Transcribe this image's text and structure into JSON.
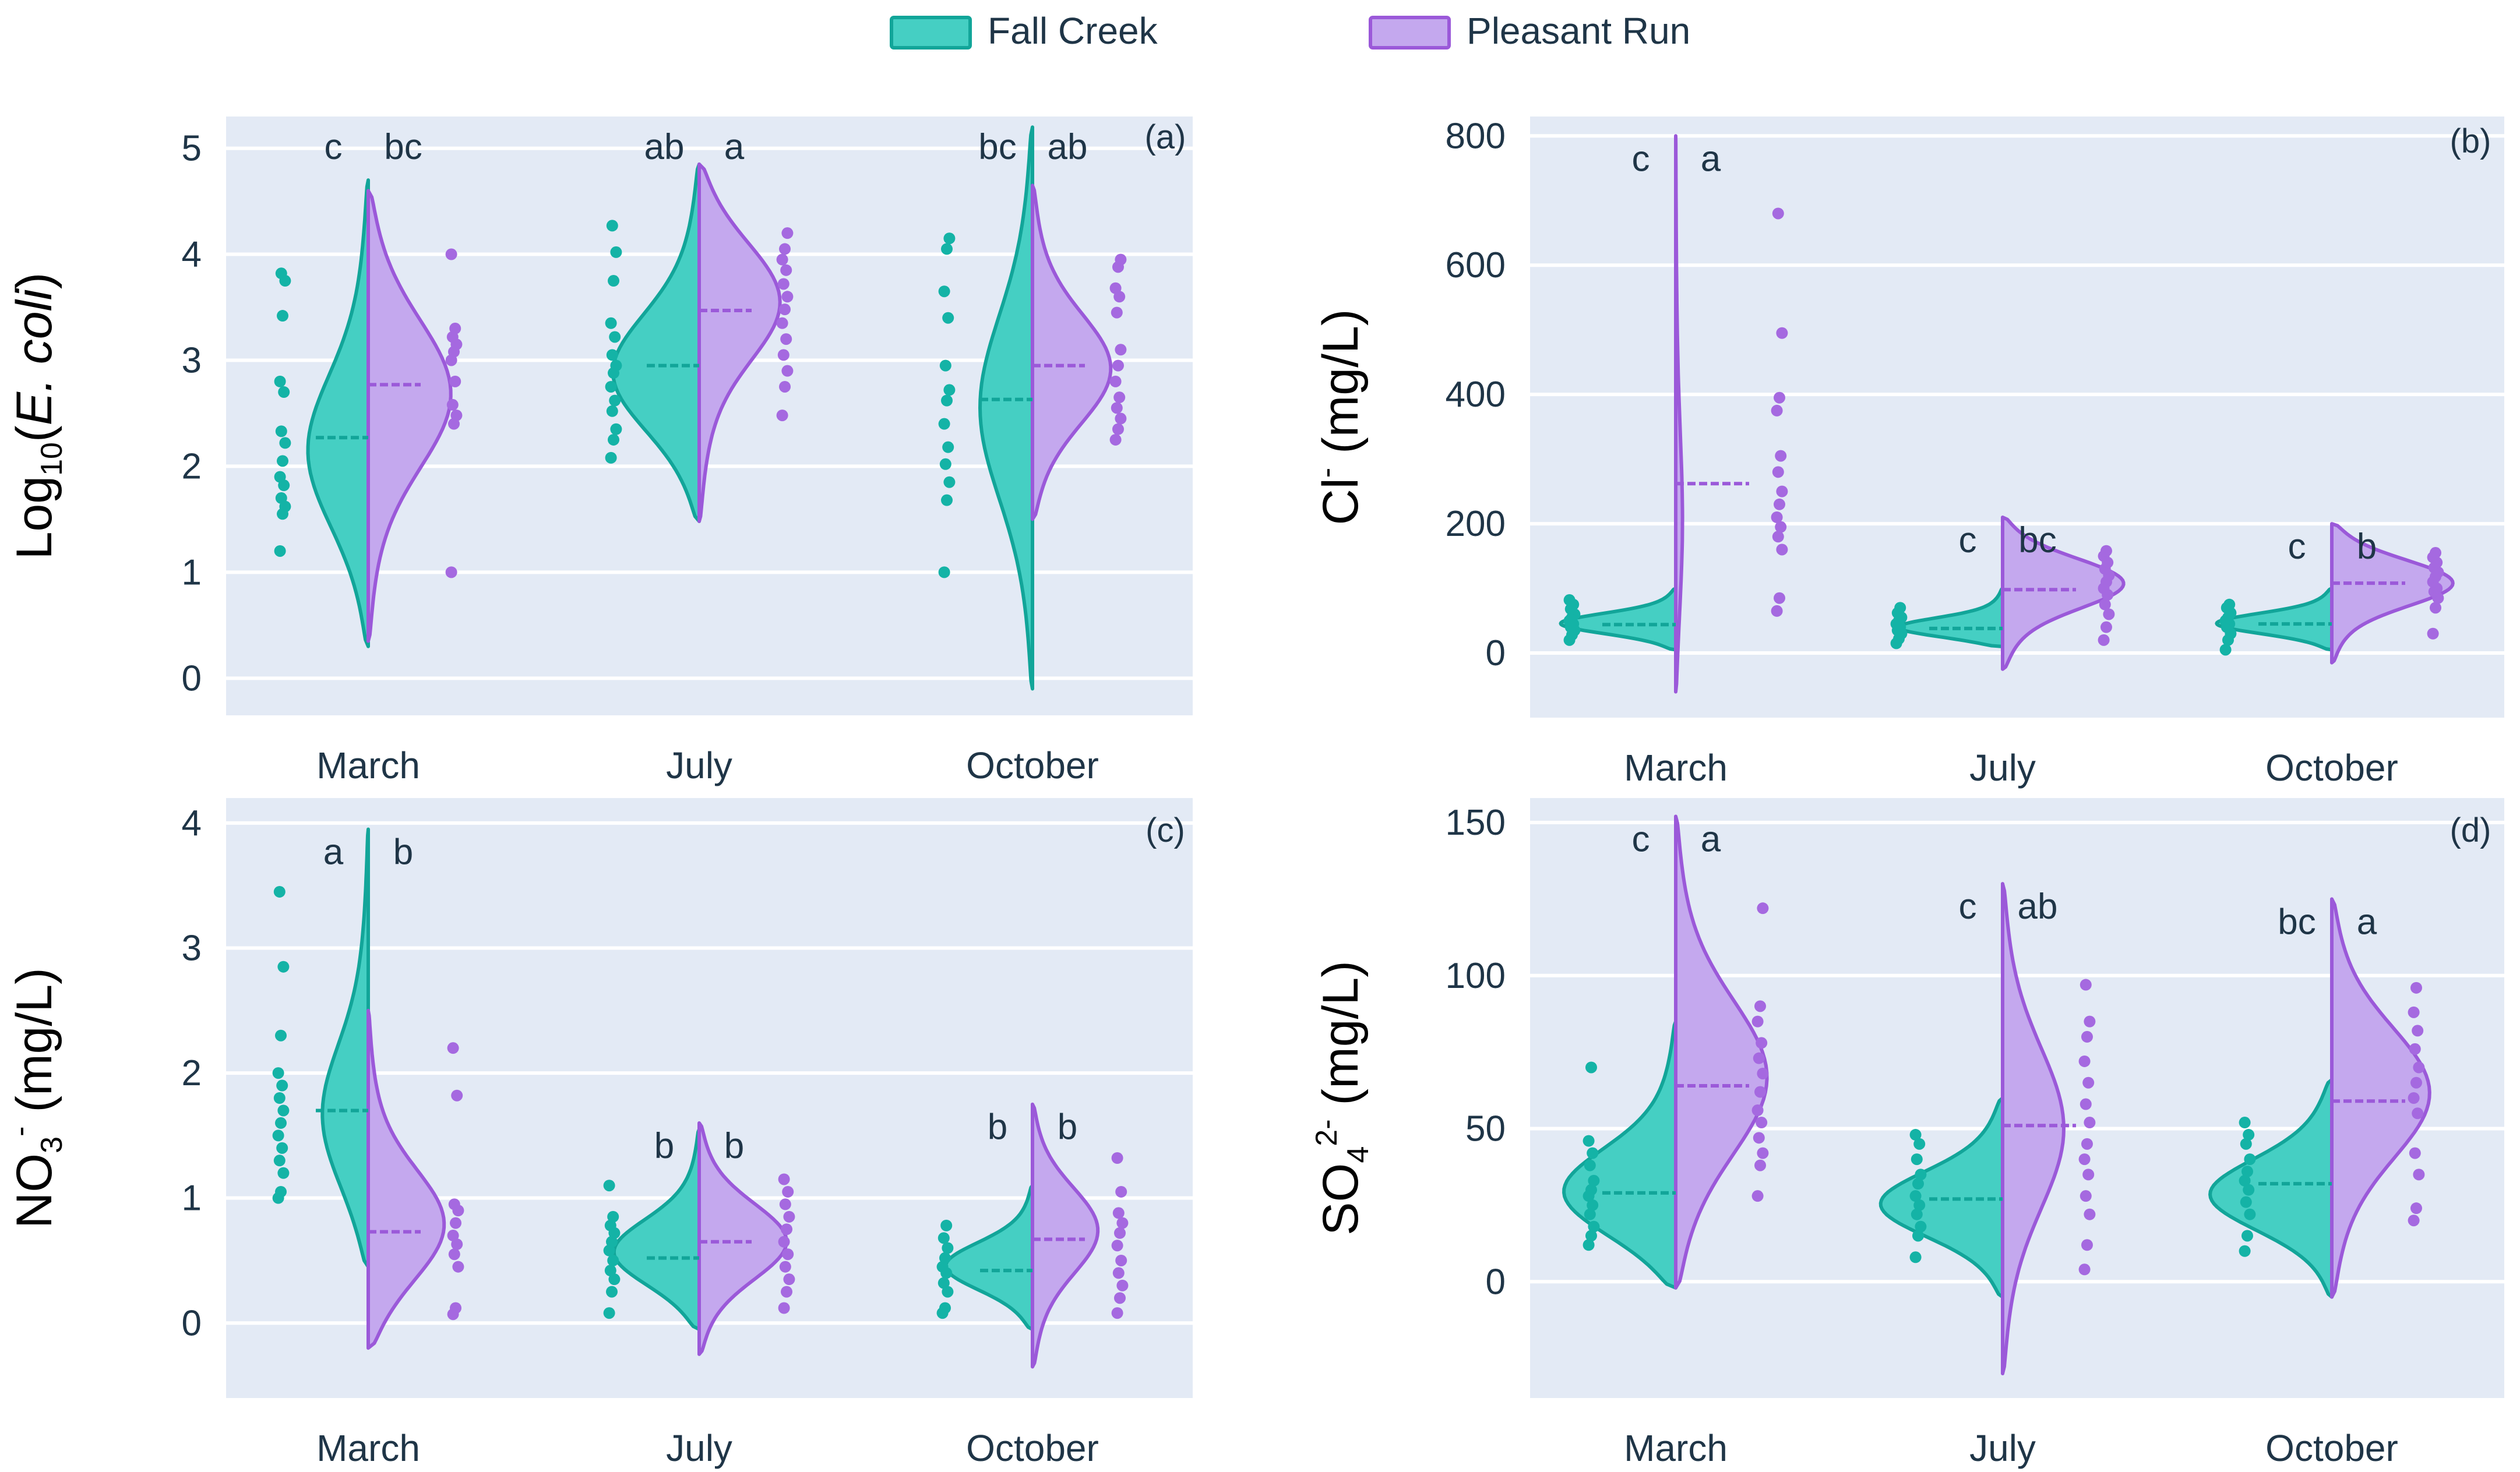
{
  "legend": {
    "fall_creek": {
      "label": "Fall Creek",
      "color": "#1FBFB0",
      "fill": "#45CFC3",
      "stroke": "#12A599"
    },
    "pleasant_run": {
      "label": "Pleasant Run",
      "color": "#9B59D9",
      "fill": "#C4A8EE",
      "stroke": "#9B59D9"
    }
  },
  "style": {
    "panel_bg": "#E3EAF5",
    "grid": "#FFFFFF",
    "text": "#1F3547"
  },
  "chart_data": [
    {
      "id": "a",
      "tag": "(a)",
      "type": "split-violin",
      "ylabel": {
        "pre": "Log",
        "sub": "10",
        "mid": "(",
        "italic": "E. coli",
        "post": ")"
      },
      "ylim": [
        -0.35,
        5.3
      ],
      "yticks": [
        0,
        1,
        2,
        3,
        4,
        5
      ],
      "categories": [
        "March",
        "July",
        "October"
      ],
      "groups": [
        {
          "fall": {
            "min": 0.3,
            "max": 4.7,
            "median": 2.27,
            "peak": 2.1,
            "width": 0.7,
            "points": [
              1.2,
              1.55,
              1.62,
              1.7,
              1.82,
              1.9,
              2.05,
              2.22,
              2.33,
              2.7,
              2.8,
              3.42,
              3.75,
              3.82
            ]
          },
          "pleasant": {
            "min": 0.35,
            "max": 4.6,
            "median": 2.77,
            "peak": 2.7,
            "width": 0.95,
            "points": [
              1.0,
              2.4,
              2.48,
              2.58,
              2.8,
              3.0,
              3.08,
              3.15,
              3.22,
              3.3,
              4.0
            ]
          },
          "letters": [
            "c",
            "bc"
          ]
        },
        {
          "fall": {
            "min": 1.48,
            "max": 4.85,
            "median": 2.95,
            "peak": 2.85,
            "width": 1.0,
            "points": [
              2.08,
              2.25,
              2.35,
              2.52,
              2.62,
              2.75,
              2.88,
              2.95,
              3.05,
              3.22,
              3.35,
              3.75,
              4.02,
              4.27
            ]
          },
          "pleasant": {
            "min": 1.48,
            "max": 4.85,
            "median": 3.47,
            "peak": 3.6,
            "width": 0.95,
            "points": [
              2.48,
              2.75,
              2.9,
              3.05,
              3.2,
              3.35,
              3.48,
              3.6,
              3.72,
              3.85,
              3.95,
              4.05,
              4.2
            ]
          },
          "letters": [
            "ab",
            "a"
          ]
        },
        {
          "fall": {
            "min": -0.1,
            "max": 5.2,
            "median": 2.63,
            "peak": 2.55,
            "width": 0.6,
            "points": [
              1.0,
              1.68,
              1.85,
              2.02,
              2.18,
              2.4,
              2.62,
              2.72,
              2.95,
              3.4,
              3.65,
              4.05,
              4.15
            ]
          },
          "pleasant": {
            "min": 1.5,
            "max": 4.65,
            "median": 2.95,
            "peak": 2.9,
            "width": 0.9,
            "points": [
              2.25,
              2.35,
              2.45,
              2.55,
              2.65,
              2.8,
              2.95,
              3.1,
              3.45,
              3.6,
              3.68,
              3.88,
              3.95
            ]
          },
          "letters": [
            "bc",
            "ab"
          ]
        }
      ]
    },
    {
      "id": "b",
      "tag": "(b)",
      "type": "split-violin",
      "ylabel": {
        "pre": "Cl",
        "sup": "-",
        "post": " (mg/L)"
      },
      "ylim": [
        -100,
        830
      ],
      "yticks": [
        0,
        200,
        400,
        600,
        800
      ],
      "categories": [
        "March",
        "July",
        "October"
      ],
      "groups": [
        {
          "fall": {
            "min": 5,
            "max": 100,
            "median": 44,
            "peak": 45,
            "width": 0.95,
            "points": [
              20,
              28,
              35,
              40,
              45,
              50,
              55,
              60,
              68,
              75,
              82
            ]
          },
          "pleasant": {
            "min": -60,
            "max": 800,
            "median": 262,
            "peak": 180,
            "width": 0.06,
            "points": [
              65,
              85,
              160,
              180,
              195,
              210,
              230,
              250,
              280,
              305,
              375,
              395,
              495,
              680
            ]
          },
          "letters": [
            "c",
            "a"
          ]
        },
        {
          "fall": {
            "min": 10,
            "max": 100,
            "median": 38,
            "peak": 38,
            "width": 0.9,
            "points": [
              15,
              22,
              30,
              35,
              40,
              45,
              50,
              55,
              62,
              70
            ]
          },
          "pleasant": {
            "min": -25,
            "max": 210,
            "median": 98,
            "peak": 110,
            "width": 1.0,
            "points": [
              20,
              40,
              60,
              75,
              90,
              100,
              110,
              120,
              130,
              140,
              150,
              158
            ]
          },
          "letters": [
            "c",
            "bc"
          ]
        },
        {
          "fall": {
            "min": 5,
            "max": 100,
            "median": 45,
            "peak": 45,
            "width": 0.95,
            "points": [
              5,
              20,
              30,
              40,
              45,
              50,
              55,
              62,
              70,
              75
            ]
          },
          "pleasant": {
            "min": -15,
            "max": 200,
            "median": 108,
            "peak": 110,
            "width": 1.0,
            "points": [
              30,
              70,
              85,
              95,
              100,
              110,
              118,
              125,
              132,
              140,
              148,
              155
            ]
          },
          "letters": [
            "c",
            "b"
          ]
        }
      ]
    },
    {
      "id": "c",
      "tag": "(c)",
      "type": "split-violin",
      "ylabel": {
        "pre": "NO",
        "sub": "3",
        "sup": "-",
        "post": " (mg/L)"
      },
      "ylim": [
        -0.6,
        4.2
      ],
      "yticks": [
        0,
        1,
        2,
        3,
        4
      ],
      "categories": [
        "March",
        "July",
        "October"
      ],
      "groups": [
        {
          "fall": {
            "min": 0.45,
            "max": 3.95,
            "median": 1.7,
            "peak": 1.6,
            "width": 0.55,
            "points": [
              1.0,
              1.05,
              1.2,
              1.3,
              1.4,
              1.5,
              1.6,
              1.7,
              1.8,
              1.9,
              2.0,
              2.3,
              2.85,
              3.45
            ]
          },
          "pleasant": {
            "min": -0.2,
            "max": 2.5,
            "median": 0.73,
            "peak": 0.75,
            "width": 0.9,
            "points": [
              0.07,
              0.12,
              0.45,
              0.55,
              0.63,
              0.7,
              0.8,
              0.9,
              0.95,
              1.82,
              2.2
            ]
          },
          "letters": [
            "a",
            "b"
          ]
        },
        {
          "fall": {
            "min": -0.05,
            "max": 1.55,
            "median": 0.52,
            "peak": 0.55,
            "width": 1.0,
            "points": [
              0.08,
              0.25,
              0.35,
              0.42,
              0.5,
              0.58,
              0.65,
              0.72,
              0.78,
              0.85,
              1.1
            ]
          },
          "pleasant": {
            "min": -0.25,
            "max": 1.6,
            "median": 0.65,
            "peak": 0.65,
            "width": 1.0,
            "points": [
              0.12,
              0.25,
              0.35,
              0.45,
              0.55,
              0.65,
              0.75,
              0.85,
              0.95,
              1.05,
              1.15
            ]
          },
          "letters": [
            "b",
            "b"
          ]
        },
        {
          "fall": {
            "min": -0.05,
            "max": 1.1,
            "median": 0.42,
            "peak": 0.45,
            "width": 1.0,
            "points": [
              0.08,
              0.12,
              0.25,
              0.32,
              0.4,
              0.45,
              0.52,
              0.6,
              0.68,
              0.78
            ]
          },
          "pleasant": {
            "min": -0.35,
            "max": 1.75,
            "median": 0.67,
            "peak": 0.75,
            "width": 0.75,
            "points": [
              0.08,
              0.2,
              0.3,
              0.4,
              0.5,
              0.62,
              0.72,
              0.8,
              0.88,
              1.05,
              1.32
            ]
          },
          "letters": [
            "b",
            "b"
          ]
        }
      ]
    },
    {
      "id": "d",
      "tag": "(d)",
      "type": "split-violin",
      "ylabel": {
        "pre": "SO",
        "sub": "4",
        "sup": "2-",
        "post": " (mg/L)"
      },
      "ylim": [
        -38,
        158
      ],
      "yticks": [
        0,
        50,
        100,
        150
      ],
      "categories": [
        "March",
        "July",
        "October"
      ],
      "groups": [
        {
          "fall": {
            "min": -2,
            "max": 85,
            "median": 29,
            "peak": 28,
            "width": 0.95,
            "points": [
              12,
              15,
              18,
              22,
              25,
              28,
              30,
              33,
              38,
              42,
              46,
              70
            ]
          },
          "pleasant": {
            "min": -2,
            "max": 152,
            "median": 64,
            "peak": 66,
            "width": 0.75,
            "points": [
              28,
              38,
              42,
              47,
              52,
              56,
              62,
              68,
              73,
              78,
              85,
              90,
              122
            ]
          },
          "letters": [
            "c",
            "a"
          ]
        },
        {
          "fall": {
            "min": -5,
            "max": 60,
            "median": 27,
            "peak": 25,
            "width": 1.0,
            "points": [
              8,
              15,
              18,
              22,
              25,
              28,
              32,
              35,
              40,
              45,
              48
            ]
          },
          "pleasant": {
            "min": -30,
            "max": 130,
            "median": 51,
            "peak": 50,
            "width": 0.5,
            "points": [
              4,
              12,
              22,
              28,
              35,
              40,
              45,
              52,
              58,
              65,
              72,
              80,
              85,
              97
            ]
          },
          "letters": [
            "c",
            "ab"
          ]
        },
        {
          "fall": {
            "min": -5,
            "max": 66,
            "median": 32,
            "peak": 28,
            "width": 1.0,
            "points": [
              10,
              15,
              22,
              26,
              30,
              33,
              36,
              40,
              45,
              48,
              52
            ]
          },
          "pleasant": {
            "min": -5,
            "max": 125,
            "median": 59,
            "peak": 62,
            "width": 0.8,
            "points": [
              20,
              24,
              35,
              42,
              55,
              60,
              65,
              70,
              76,
              82,
              88,
              96
            ]
          },
          "letters": [
            "bc",
            "a"
          ]
        }
      ]
    }
  ]
}
